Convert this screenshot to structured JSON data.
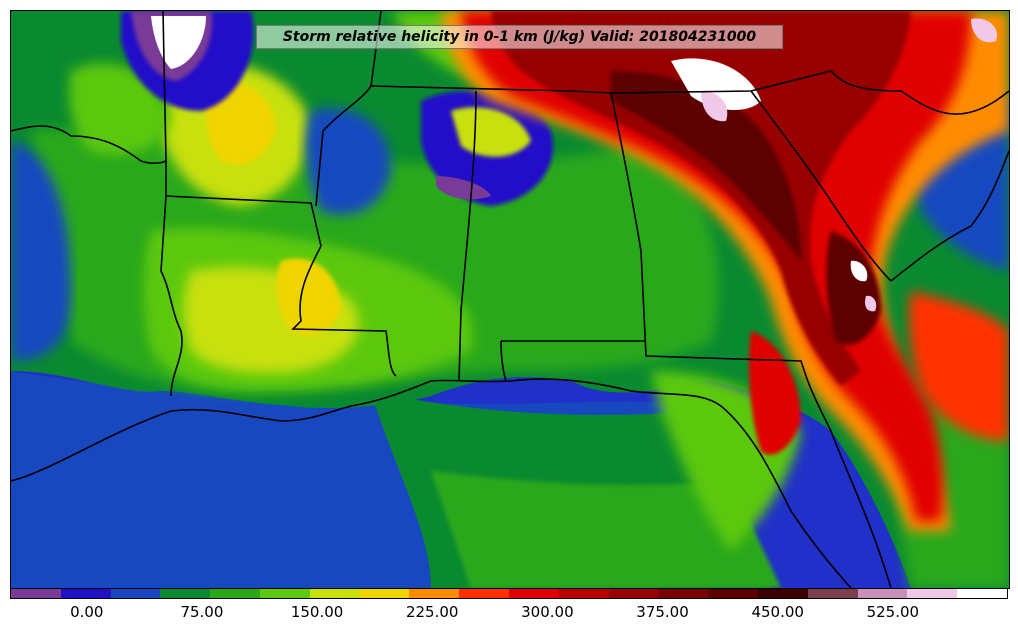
{
  "title": "Storm relative helicity in 0-1 km (J/kg) Valid: 201804231000",
  "colors": {
    "levels": [
      "#7a3a98",
      "#2010c8",
      "#1848c0",
      "#0a8a30",
      "#2aa81a",
      "#5cc810",
      "#c8e010",
      "#f0d400",
      "#ff8c00",
      "#ff3000",
      "#e00000",
      "#b80000",
      "#980000",
      "#7a0000",
      "#5c0000",
      "#3c0000",
      "#7a4050",
      "#c890b8",
      "#f0c8e8",
      "#ffffff"
    ],
    "water": "#2030c8",
    "boundaries": "#000000"
  },
  "colorbar": {
    "tick_labels": [
      "0.00",
      "75.00",
      "150.00",
      "225.00",
      "300.00",
      "375.00",
      "450.00",
      "525.00"
    ],
    "tick_values": [
      0,
      75,
      150,
      225,
      300,
      375,
      450,
      525
    ],
    "range": [
      -50,
      600
    ]
  }
}
